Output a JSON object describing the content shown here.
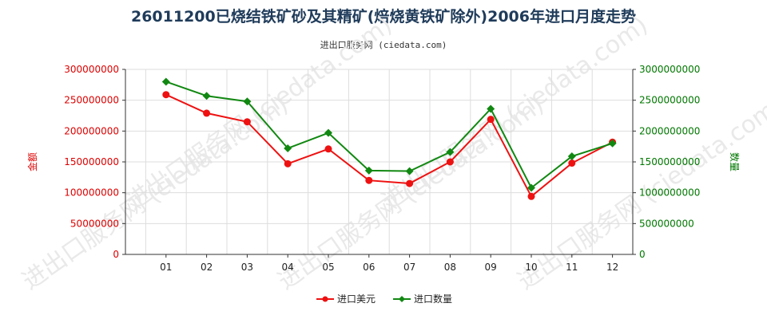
{
  "title": "26011200已烧结铁矿砂及其精矿(焙烧黄铁矿除外)2006年进口月度走势",
  "subtitle": "进出口服务网 (ciedata.com)",
  "watermark": "进出口服务网 (ciedata.com)",
  "colors": {
    "left_axis": "#dd0000",
    "right_axis": "#007700",
    "series_money": "#ee1111",
    "series_qty": "#118811",
    "grid": "#dddddd",
    "axis": "#333333"
  },
  "chart_data": {
    "type": "line",
    "categories": [
      "01",
      "02",
      "03",
      "04",
      "05",
      "06",
      "07",
      "08",
      "09",
      "10",
      "11",
      "12"
    ],
    "left_axis": {
      "label": "金额",
      "ylim": [
        0,
        300000000
      ],
      "ticks": [
        0,
        50000000,
        100000000,
        150000000,
        200000000,
        250000000,
        300000000
      ]
    },
    "right_axis": {
      "label": "数量",
      "ylim": [
        0,
        3000000000
      ],
      "ticks": [
        0,
        500000000,
        1000000000,
        1500000000,
        2000000000,
        2500000000,
        3000000000
      ]
    },
    "series": [
      {
        "name": "进口美元",
        "axis": "left",
        "color": "#ee1111",
        "marker": "circle",
        "values": [
          259000000,
          229000000,
          215000000,
          147000000,
          171000000,
          120000000,
          115000000,
          150000000,
          219000000,
          94000000,
          148000000,
          182000000
        ]
      },
      {
        "name": "进口数量",
        "axis": "right",
        "color": "#118811",
        "marker": "diamond",
        "values": [
          2800000000,
          2570000000,
          2480000000,
          1720000000,
          1970000000,
          1360000000,
          1350000000,
          1660000000,
          2360000000,
          1080000000,
          1590000000,
          1800000000
        ]
      }
    ],
    "grid": true,
    "legend": "bottom-center"
  }
}
